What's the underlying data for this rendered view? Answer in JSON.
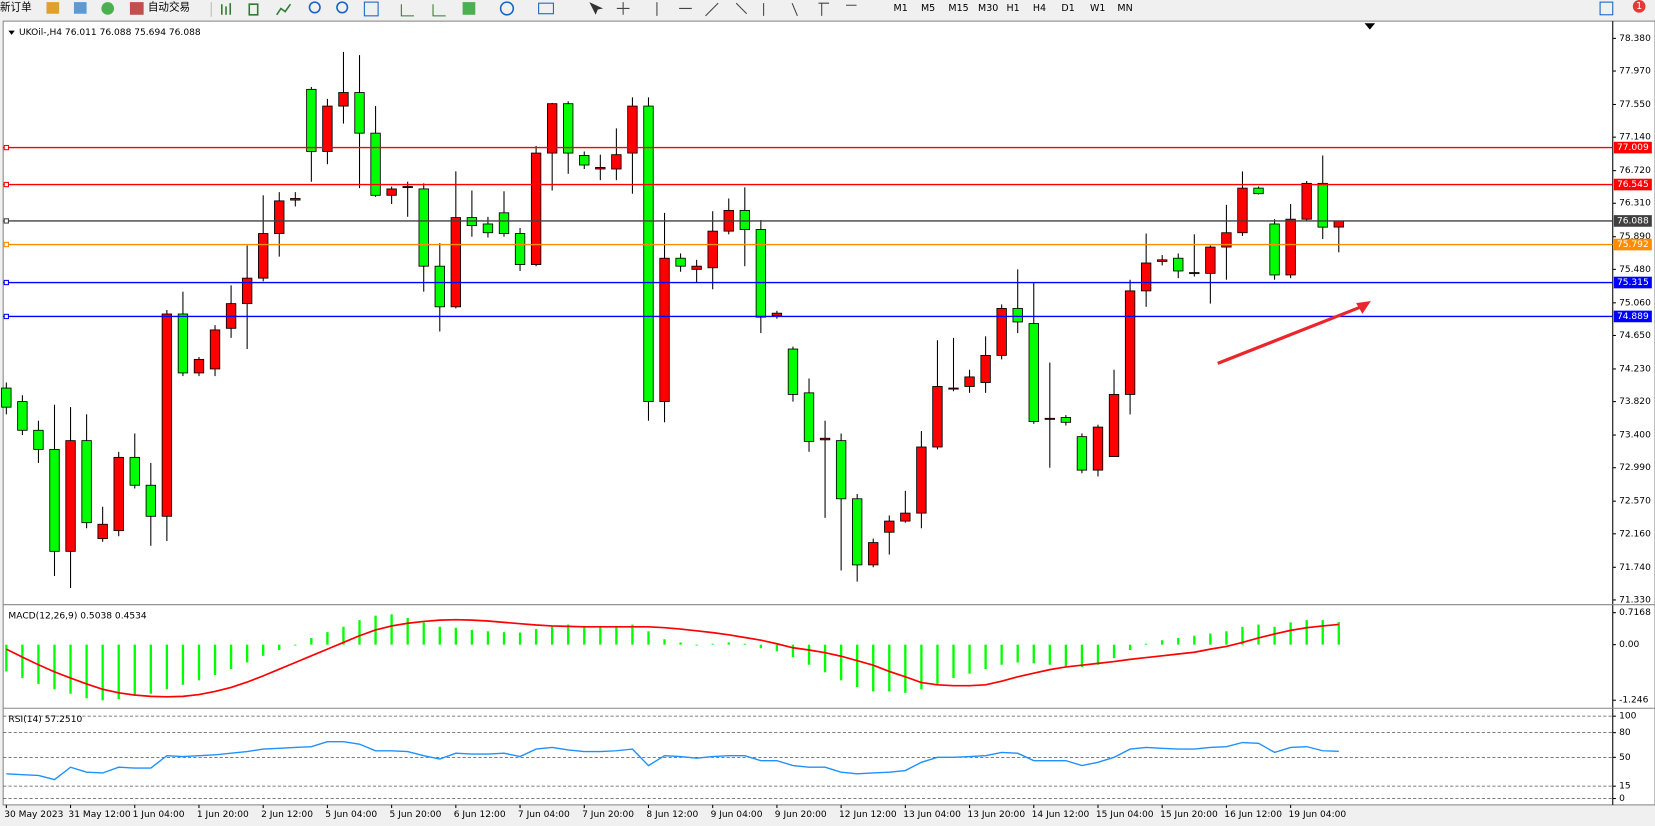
{
  "toolbar": {
    "new_order": "新订单",
    "auto_trading": "自动交易",
    "timeframes": [
      "M1",
      "M5",
      "M15",
      "M30",
      "H1",
      "H4",
      "D1",
      "W1",
      "MN"
    ],
    "badge": "1"
  },
  "chart_data": [
    {
      "type": "candlestick",
      "title": "UKOil-,H4  76.011 76.088 75.694 76.088",
      "categories": [
        "30 May 2023",
        null,
        null,
        null,
        "31 May 12:00",
        null,
        null,
        null,
        "1 Jun 04:00",
        null,
        null,
        null,
        "1 Jun 20:00",
        null,
        null,
        null,
        "2 Jun 12:00",
        null,
        null,
        null,
        "5 Jun 04:00",
        null,
        null,
        null,
        "5 Jun 20:00",
        null,
        null,
        null,
        "6 Jun 12:00",
        null,
        null,
        null,
        "7 Jun 04:00",
        null,
        null,
        null,
        "7 Jun 20:00",
        null,
        null,
        null,
        "8 Jun 12:00",
        null,
        null,
        null,
        "9 Jun 04:00",
        null,
        null,
        null,
        "9 Jun 20:00",
        null,
        null,
        null,
        "12 Jun 12:00",
        null,
        null,
        null,
        "13 Jun 04:00",
        null,
        null,
        null,
        "13 Jun 20:00",
        null,
        null,
        null,
        "14 Jun 12:00",
        null,
        null,
        null,
        "15 Jun 04:00",
        null,
        null,
        null,
        "15 Jun 20:00",
        null,
        null,
        null,
        "16 Jun 12:00",
        null,
        null,
        null,
        "19 Jun 04:00",
        null,
        null,
        null
      ],
      "open": [
        73.99,
        73.82,
        73.46,
        73.22,
        71.94,
        73.33,
        72.1,
        72.2,
        73.12,
        72.77,
        72.38,
        74.92,
        74.18,
        74.23,
        74.74,
        75.05,
        75.37,
        75.93,
        76.35,
        77.74,
        76.96,
        77.53,
        77.7,
        77.19,
        76.41,
        76.51,
        76.49,
        75.52,
        75.01,
        76.13,
        76.05,
        76.19,
        75.93,
        75.54,
        76.94,
        77.56,
        76.91,
        76.74,
        76.74,
        76.94,
        77.53,
        73.82,
        75.62,
        75.48,
        75.5,
        75.96,
        76.22,
        75.98,
        74.9,
        74.48,
        73.93,
        73.34,
        73.33,
        72.6,
        71.77,
        72.18,
        72.32,
        72.42,
        73.25,
        73.98,
        74.01,
        74.06,
        74.4,
        74.99,
        74.8,
        73.6,
        73.62,
        73.38,
        72.96,
        73.13,
        73.91,
        75.21,
        75.58,
        75.62,
        75.43,
        75.43,
        75.76,
        75.94,
        76.5,
        76.05,
        75.41,
        76.11,
        76.56,
        76.011
      ],
      "high": [
        74.06,
        73.9,
        73.58,
        73.78,
        73.75,
        73.66,
        72.5,
        73.19,
        73.42,
        73.05,
        74.97,
        75.2,
        74.38,
        74.78,
        75.28,
        75.78,
        76.41,
        76.45,
        76.45,
        77.77,
        77.62,
        78.21,
        78.17,
        77.53,
        76.52,
        76.58,
        76.56,
        75.81,
        76.71,
        76.47,
        76.14,
        76.46,
        76.0,
        77.03,
        77.57,
        77.59,
        76.96,
        76.92,
        77.25,
        77.64,
        77.64,
        76.19,
        75.68,
        75.6,
        76.21,
        76.37,
        76.51,
        76.1,
        74.96,
        74.51,
        74.11,
        73.58,
        73.42,
        72.66,
        72.1,
        72.39,
        72.7,
        73.45,
        74.59,
        74.62,
        74.22,
        74.64,
        75.04,
        75.48,
        75.31,
        74.31,
        73.65,
        73.42,
        73.53,
        74.22,
        75.35,
        75.93,
        75.66,
        75.68,
        75.92,
        75.78,
        76.29,
        76.71,
        76.52,
        76.11,
        76.3,
        76.59,
        76.91,
        76.088
      ],
      "low": [
        73.66,
        73.4,
        73.05,
        71.63,
        71.48,
        72.23,
        72.06,
        72.13,
        72.73,
        72.01,
        72.07,
        74.14,
        74.14,
        74.14,
        74.62,
        74.48,
        75.33,
        75.64,
        76.27,
        76.58,
        76.8,
        77.31,
        76.5,
        76.39,
        76.3,
        76.14,
        75.2,
        74.7,
        74.99,
        75.89,
        75.88,
        75.89,
        75.46,
        75.52,
        76.47,
        76.68,
        76.74,
        76.6,
        76.6,
        76.43,
        73.58,
        73.56,
        75.45,
        75.32,
        75.23,
        75.92,
        75.52,
        74.68,
        74.86,
        73.82,
        73.19,
        72.36,
        71.7,
        71.56,
        71.74,
        71.9,
        72.3,
        72.23,
        73.22,
        73.95,
        73.93,
        73.93,
        74.35,
        74.68,
        73.54,
        72.99,
        73.52,
        72.92,
        72.88,
        73.13,
        73.66,
        75.01,
        75.53,
        75.37,
        75.39,
        75.05,
        75.35,
        75.9,
        76.42,
        75.35,
        75.37,
        76.09,
        75.86,
        75.694
      ],
      "close": [
        73.75,
        73.46,
        73.22,
        71.94,
        73.33,
        72.3,
        72.28,
        73.12,
        72.77,
        72.38,
        74.92,
        74.18,
        74.35,
        74.72,
        75.05,
        75.37,
        75.93,
        76.34,
        76.37,
        76.96,
        77.53,
        77.7,
        77.19,
        76.41,
        76.49,
        76.52,
        75.52,
        75.01,
        76.13,
        76.03,
        75.94,
        75.93,
        75.54,
        76.94,
        77.56,
        76.94,
        76.79,
        76.76,
        76.92,
        77.53,
        73.82,
        75.62,
        75.52,
        75.52,
        75.96,
        76.22,
        75.98,
        74.88,
        74.93,
        73.91,
        73.32,
        73.36,
        72.6,
        71.77,
        72.05,
        72.32,
        72.42,
        73.25,
        74.01,
        73.99,
        74.13,
        74.4,
        74.99,
        74.82,
        73.57,
        73.61,
        73.56,
        72.96,
        73.5,
        73.91,
        75.21,
        75.56,
        75.6,
        75.46,
        75.44,
        75.76,
        75.94,
        76.5,
        76.43,
        75.41,
        76.11,
        76.56,
        76.01,
        76.088
      ],
      "up_color": "#ff0000",
      "down_color": "#00ff00",
      "levels": [
        {
          "value": 77.009,
          "color": "#ff0000"
        },
        {
          "value": 76.545,
          "color": "#ff0000"
        },
        {
          "value": 76.088,
          "color": "#404040"
        },
        {
          "value": 75.792,
          "color": "#ff8c00"
        },
        {
          "value": 75.315,
          "color": "#0000ff"
        },
        {
          "value": 74.889,
          "color": "#0000ff"
        }
      ],
      "ylim": [
        71.29,
        78.57
      ],
      "yticks": [
        {
          "value": 78.38,
          "label": "78.380"
        },
        {
          "value": 77.97,
          "label": "77.970"
        },
        {
          "value": 77.55,
          "label": "77.550"
        },
        {
          "value": 77.14,
          "label": "77.140"
        },
        {
          "value": 76.72,
          "label": "76.720"
        },
        {
          "value": 76.31,
          "label": "76.310"
        },
        {
          "value": 75.89,
          "label": "75.890"
        },
        {
          "value": 75.48,
          "label": "75.480"
        },
        {
          "value": 75.06,
          "label": "75.060"
        },
        {
          "value": 74.65,
          "label": "74.650"
        },
        {
          "value": 74.23,
          "label": "74.230"
        },
        {
          "value": 73.82,
          "label": "73.820"
        },
        {
          "value": 73.4,
          "label": "73.400"
        },
        {
          "value": 72.99,
          "label": "72.990"
        },
        {
          "value": 72.57,
          "label": "72.570"
        },
        {
          "value": 72.16,
          "label": "72.160"
        },
        {
          "value": 71.74,
          "label": "71.740"
        },
        {
          "value": 71.33,
          "label": "71.330"
        }
      ]
    },
    {
      "type": "macd",
      "title": "MACD(12,26,9) 0.5038 0.4534",
      "histogram": {
        "color": "#00ff00",
        "values": [
          -0.6,
          -0.75,
          -0.88,
          -1.0,
          -1.1,
          -1.2,
          -1.25,
          -1.22,
          -1.15,
          -1.1,
          -1.0,
          -0.9,
          -0.8,
          -0.68,
          -0.55,
          -0.4,
          -0.25,
          -0.12,
          -0.02,
          0.15,
          0.28,
          0.4,
          0.55,
          0.65,
          0.68,
          0.6,
          0.5,
          0.4,
          0.38,
          0.33,
          0.3,
          0.28,
          0.27,
          0.35,
          0.42,
          0.45,
          0.42,
          0.4,
          0.42,
          0.45,
          0.3,
          0.12,
          0.05,
          -0.02,
          0.02,
          0.05,
          0.02,
          -0.08,
          -0.15,
          -0.28,
          -0.45,
          -0.62,
          -0.8,
          -0.95,
          -1.05,
          -1.05,
          -1.08,
          -1.0,
          -0.88,
          -0.75,
          -0.65,
          -0.55,
          -0.45,
          -0.4,
          -0.42,
          -0.45,
          -0.48,
          -0.5,
          -0.45,
          -0.3,
          -0.12,
          0.02,
          0.1,
          0.15,
          0.2,
          0.25,
          0.3,
          0.4,
          0.45,
          0.4,
          0.5,
          0.55,
          0.55,
          0.5038
        ]
      },
      "signal": {
        "color": "#ff0000",
        "values": [
          -0.1,
          -0.28,
          -0.45,
          -0.61,
          -0.75,
          -0.88,
          -1.0,
          -1.08,
          -1.13,
          -1.16,
          -1.17,
          -1.16,
          -1.12,
          -1.05,
          -0.96,
          -0.84,
          -0.7,
          -0.55,
          -0.4,
          -0.25,
          -0.1,
          0.05,
          0.2,
          0.33,
          0.42,
          0.48,
          0.52,
          0.55,
          0.56,
          0.55,
          0.53,
          0.5,
          0.47,
          0.44,
          0.42,
          0.41,
          0.4,
          0.4,
          0.4,
          0.4,
          0.4,
          0.38,
          0.35,
          0.31,
          0.27,
          0.22,
          0.16,
          0.1,
          0.02,
          -0.07,
          -0.12,
          -0.18,
          -0.26,
          -0.36,
          -0.46,
          -0.6,
          -0.72,
          -0.85,
          -0.9,
          -0.92,
          -0.92,
          -0.9,
          -0.82,
          -0.72,
          -0.64,
          -0.56,
          -0.5,
          -0.46,
          -0.42,
          -0.38,
          -0.33,
          -0.29,
          -0.25,
          -0.21,
          -0.17,
          -0.1,
          -0.04,
          0.05,
          0.15,
          0.24,
          0.32,
          0.38,
          0.42,
          0.4534
        ]
      },
      "ylim": [
        -1.39,
        0.86
      ],
      "yticks": [
        0.7168,
        {
          "value": 0,
          "label": "0.00"
        },
        -1.246
      ]
    },
    {
      "type": "line",
      "title": "RSI(14) 57.2510",
      "color": "#1e90ff",
      "values": [
        30,
        29,
        28,
        23,
        38,
        32,
        31,
        38,
        37,
        37,
        52,
        51,
        52,
        53,
        55,
        57,
        60,
        61,
        62,
        63,
        69,
        69,
        66,
        58,
        58,
        57,
        52,
        48,
        55,
        54,
        54,
        55,
        51,
        60,
        62,
        59,
        57,
        57,
        58,
        60,
        40,
        52,
        51,
        49,
        51,
        52,
        52,
        46,
        46,
        40,
        38,
        38,
        32,
        30,
        31,
        32,
        34,
        44,
        50,
        50,
        51,
        52,
        56,
        55,
        46,
        46,
        46,
        40,
        44,
        50,
        60,
        62,
        61,
        60,
        60,
        62,
        63,
        68,
        67,
        56,
        62,
        63,
        58,
        57.251
      ],
      "ylim": [
        -7.7,
        107.7
      ],
      "yticks": [
        100,
        80,
        50,
        15,
        0
      ],
      "grid": true
    }
  ]
}
